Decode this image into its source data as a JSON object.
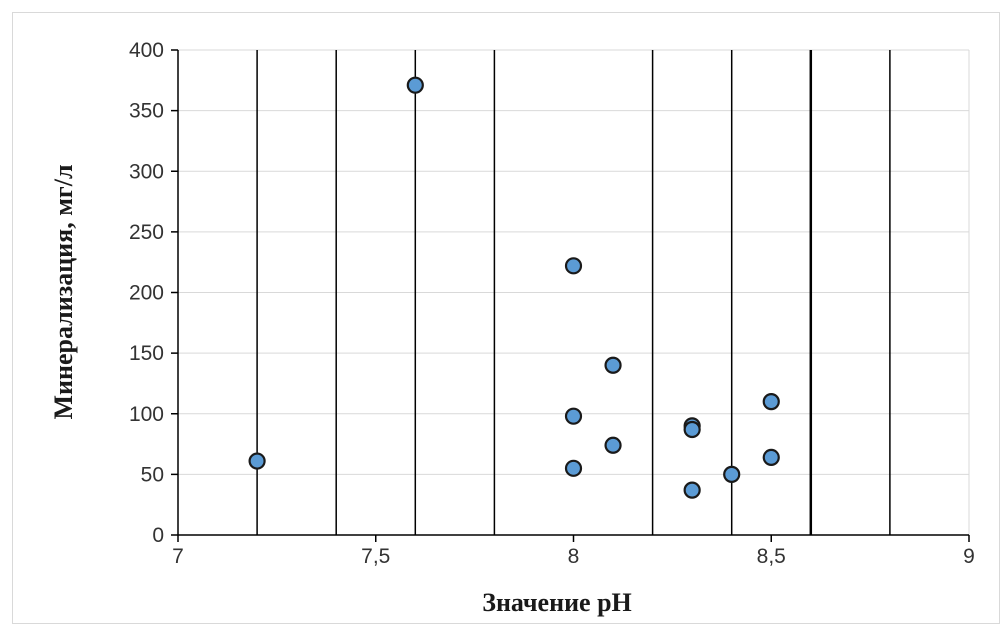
{
  "chart_data": {
    "type": "scatter",
    "title": "",
    "xlabel": "Значение pH",
    "ylabel": "Минерализация, мг/л",
    "xlim": [
      7,
      9
    ],
    "ylim": [
      0,
      400
    ],
    "x_ticks": [
      7,
      7.5,
      8,
      8.5,
      9
    ],
    "x_tick_labels": [
      "7",
      "7,5",
      "8",
      "8,5",
      "9"
    ],
    "y_ticks": [
      0,
      50,
      100,
      150,
      200,
      250,
      300,
      350,
      400
    ],
    "y_tick_labels": [
      "0",
      "50",
      "100",
      "150",
      "200",
      "250",
      "300",
      "350",
      "400"
    ],
    "vertical_lines_x": [
      7.2,
      7.4,
      7.6,
      7.8,
      8.2,
      8.4,
      8.6,
      8.8
    ],
    "grid": true,
    "marker_color": "#5b9bd5",
    "marker_edge_color": "#1a1a1a",
    "points": [
      {
        "x": 7.2,
        "y": 61
      },
      {
        "x": 7.6,
        "y": 371
      },
      {
        "x": 8.0,
        "y": 222
      },
      {
        "x": 8.0,
        "y": 98
      },
      {
        "x": 8.0,
        "y": 55
      },
      {
        "x": 8.1,
        "y": 140
      },
      {
        "x": 8.1,
        "y": 74
      },
      {
        "x": 8.3,
        "y": 90
      },
      {
        "x": 8.3,
        "y": 87
      },
      {
        "x": 8.3,
        "y": 37
      },
      {
        "x": 8.4,
        "y": 50
      },
      {
        "x": 8.5,
        "y": 110
      },
      {
        "x": 8.5,
        "y": 64
      }
    ]
  }
}
